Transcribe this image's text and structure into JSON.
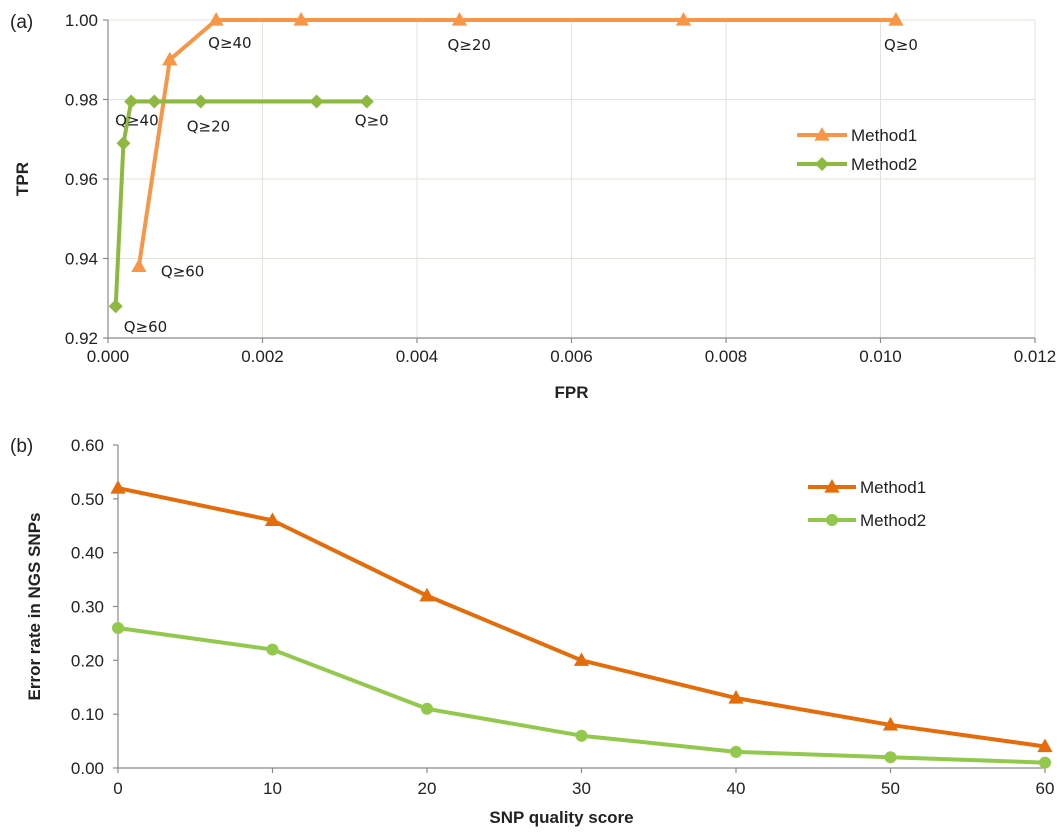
{
  "colors": {
    "panel_a": {
      "Method1": "#f79646",
      "Method2": "#8db940"
    },
    "panel_b": {
      "Method1": "#e46c0a",
      "Method2": "#92c94d"
    }
  },
  "chart_data": [
    {
      "panel_label": "(a)",
      "type": "line",
      "xlabel": "FPR",
      "ylabel": "TPR",
      "xlim": [
        0,
        0.012
      ],
      "ylim": [
        0.92,
        1.0
      ],
      "xticks": [
        "0.000",
        "0.002",
        "0.004",
        "0.006",
        "0.008",
        "0.010",
        "0.012"
      ],
      "yticks": [
        "0.92",
        "0.94",
        "0.96",
        "0.98",
        "1.00"
      ],
      "grid": true,
      "legend": "right",
      "series": [
        {
          "name": "Method1",
          "marker": "triangle",
          "points": [
            [
              0.0004,
              0.938
            ],
            [
              0.0008,
              0.99
            ],
            [
              0.0014,
              1.0
            ],
            [
              0.0025,
              1.0
            ],
            [
              0.00455,
              1.0
            ],
            [
              0.00745,
              1.0
            ],
            [
              0.0102,
              1.0
            ]
          ]
        },
        {
          "name": "Method2",
          "marker": "diamond",
          "points": [
            [
              0.0001,
              0.928
            ],
            [
              0.0002,
              0.969
            ],
            [
              0.0003,
              0.9795
            ],
            [
              0.0006,
              0.9795
            ],
            [
              0.0012,
              0.9795
            ],
            [
              0.0027,
              0.9795
            ],
            [
              0.00335,
              0.9795
            ]
          ]
        }
      ],
      "annotations": [
        {
          "text": "Q≥40",
          "series": "Method1",
          "point": 2
        },
        {
          "text": "Q≥20",
          "series": "Method1",
          "point": 4
        },
        {
          "text": "Q≥0",
          "series": "Method1",
          "point": 6
        },
        {
          "text": "Q≥60",
          "series": "Method1",
          "point": 0
        },
        {
          "text": "Q≥40",
          "series": "Method2",
          "point": 2
        },
        {
          "text": "Q≥20",
          "series": "Method2",
          "point": 4
        },
        {
          "text": "Q≥0",
          "series": "Method2",
          "point": 6
        },
        {
          "text": "Q≥60",
          "series": "Method2",
          "point": 0
        }
      ]
    },
    {
      "panel_label": "(b)",
      "type": "line",
      "xlabel": "SNP quality score",
      "ylabel": "Error rate in NGS SNPs",
      "xlim": [
        0,
        60
      ],
      "ylim": [
        0,
        0.6
      ],
      "xticks": [
        "0",
        "10",
        "20",
        "30",
        "40",
        "50",
        "60"
      ],
      "yticks": [
        "0.00",
        "0.10",
        "0.20",
        "0.30",
        "0.40",
        "0.50",
        "0.60"
      ],
      "grid": false,
      "legend": "top-right",
      "x": [
        0,
        10,
        20,
        30,
        40,
        50,
        60
      ],
      "series": [
        {
          "name": "Method1",
          "marker": "triangle",
          "values": [
            0.52,
            0.46,
            0.32,
            0.2,
            0.13,
            0.08,
            0.04
          ]
        },
        {
          "name": "Method2",
          "marker": "circle",
          "values": [
            0.26,
            0.22,
            0.11,
            0.06,
            0.03,
            0.02,
            0.01
          ]
        }
      ]
    }
  ]
}
